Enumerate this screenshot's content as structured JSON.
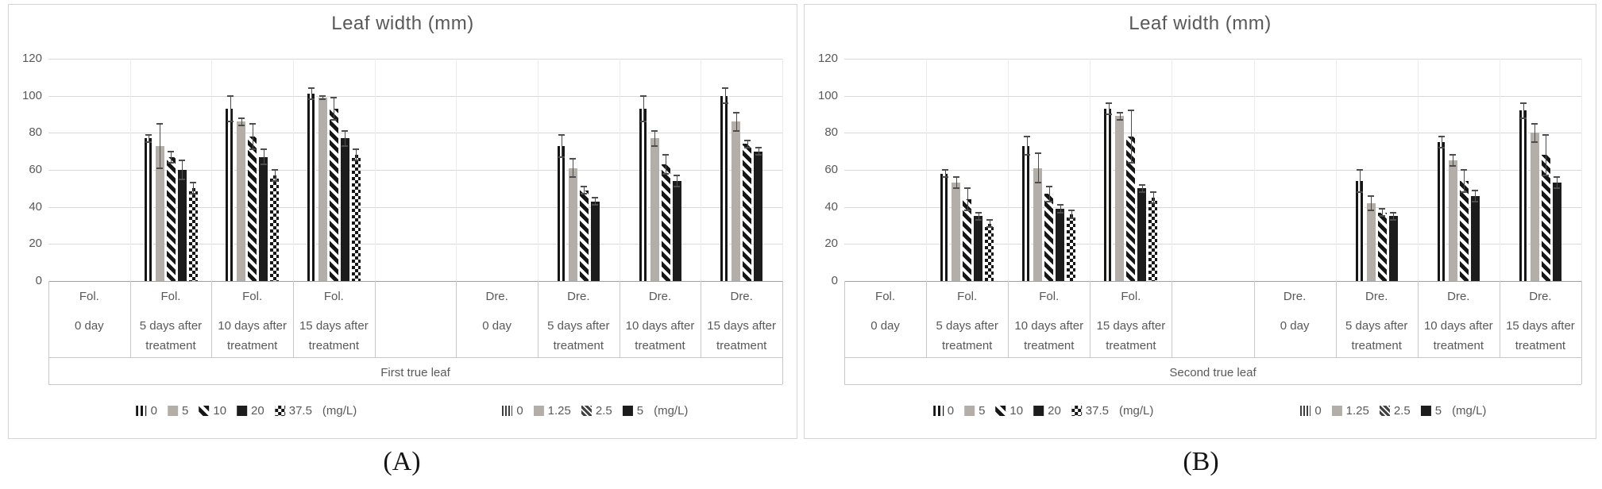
{
  "colors": {
    "text": "#595959",
    "gridline": "#d9d9d9",
    "bar_gray": "#b3afa8",
    "bar_black": "#1c1c1c",
    "error_bar": "#4d4d4d"
  },
  "figure": {
    "caption_a": "(A)",
    "caption_b": "(B)"
  },
  "chart_data": [
    {
      "type": "bar",
      "panel": "A",
      "title": "Leaf width (mm)",
      "caption": "(A)",
      "axis_caption": "First true leaf",
      "ylim": [
        0,
        120
      ],
      "yticks": [
        "0",
        "20",
        "40",
        "60",
        "80",
        "100",
        "120"
      ],
      "grid": true,
      "legend_position": "bottom",
      "groups": [
        {
          "label_top": "Fol.",
          "label_mid": "0 day",
          "label_bottom": "",
          "series": []
        },
        {
          "label_top": "Fol.",
          "label_mid": "5 days after",
          "label_bottom": "treatment",
          "series": [
            {
              "name": "0",
              "pattern": "vstripe",
              "value": 77,
              "error": 2
            },
            {
              "name": "5",
              "pattern": "gray",
              "value": 73,
              "error": 12
            },
            {
              "name": "10",
              "pattern": "diag",
              "value": 67,
              "error": 3
            },
            {
              "name": "20",
              "pattern": "black",
              "value": 60,
              "error": 5
            },
            {
              "name": "37.5",
              "pattern": "check",
              "value": 50,
              "error": 3
            }
          ]
        },
        {
          "label_top": "Fol.",
          "label_mid": "10 days after",
          "label_bottom": "treatment",
          "series": [
            {
              "name": "0",
              "pattern": "vstripe",
              "value": 93,
              "error": 7
            },
            {
              "name": "5",
              "pattern": "gray",
              "value": 86,
              "error": 2
            },
            {
              "name": "10",
              "pattern": "diag",
              "value": 78,
              "error": 7
            },
            {
              "name": "20",
              "pattern": "black",
              "value": 67,
              "error": 4
            },
            {
              "name": "37.5",
              "pattern": "check",
              "value": 57,
              "error": 3
            }
          ]
        },
        {
          "label_top": "Fol.",
          "label_mid": "15 days after",
          "label_bottom": "treatment",
          "series": [
            {
              "name": "0",
              "pattern": "vstripe",
              "value": 101,
              "error": 3
            },
            {
              "name": "5",
              "pattern": "gray",
              "value": 99,
              "error": 1
            },
            {
              "name": "10",
              "pattern": "diag",
              "value": 93,
              "error": 6
            },
            {
              "name": "20",
              "pattern": "black",
              "value": 77,
              "error": 4
            },
            {
              "name": "37.5",
              "pattern": "check",
              "value": 68,
              "error": 3
            }
          ]
        },
        {
          "label_top": "",
          "label_mid": "",
          "label_bottom": "",
          "series": []
        },
        {
          "label_top": "Dre.",
          "label_mid": "0 day",
          "label_bottom": "",
          "series": []
        },
        {
          "label_top": "Dre.",
          "label_mid": "5 days after",
          "label_bottom": "treatment",
          "series": [
            {
              "name": "0",
              "pattern": "vstripe",
              "value": 73,
              "error": 6
            },
            {
              "name": "1.25",
              "pattern": "gray",
              "value": 61,
              "error": 5
            },
            {
              "name": "2.5",
              "pattern": "diag",
              "value": 49,
              "error": 2
            },
            {
              "name": "5",
              "pattern": "black",
              "value": 43,
              "error": 2
            }
          ]
        },
        {
          "label_top": "Dre.",
          "label_mid": "10 days after",
          "label_bottom": "treatment",
          "series": [
            {
              "name": "0",
              "pattern": "vstripe",
              "value": 93,
              "error": 7
            },
            {
              "name": "1.25",
              "pattern": "gray",
              "value": 77,
              "error": 4
            },
            {
              "name": "2.5",
              "pattern": "diag",
              "value": 63,
              "error": 5
            },
            {
              "name": "5",
              "pattern": "black",
              "value": 54,
              "error": 3
            }
          ]
        },
        {
          "label_top": "Dre.",
          "label_mid": "15 days after",
          "label_bottom": "treatment",
          "series": [
            {
              "name": "0",
              "pattern": "vstripe",
              "value": 100,
              "error": 4
            },
            {
              "name": "1.25",
              "pattern": "gray",
              "value": 86,
              "error": 5
            },
            {
              "name": "2.5",
              "pattern": "diag",
              "value": 74,
              "error": 2
            },
            {
              "name": "5",
              "pattern": "black",
              "value": 70,
              "error": 2
            }
          ]
        }
      ],
      "legends": [
        {
          "entries": [
            {
              "swatch": "vstripe",
              "label": "0"
            },
            {
              "swatch": "gray",
              "label": "5"
            },
            {
              "swatch": "diag",
              "label": "10"
            },
            {
              "swatch": "black",
              "label": "20"
            },
            {
              "swatch": "check",
              "label": "37.5"
            }
          ],
          "suffix": "(mg/L)"
        },
        {
          "entries": [
            {
              "swatch": "vstripe-fine",
              "label": "0"
            },
            {
              "swatch": "gray",
              "label": "1.25"
            },
            {
              "swatch": "diag-fine",
              "label": "2.5"
            },
            {
              "swatch": "black",
              "label": "5"
            }
          ],
          "suffix": "(mg/L)"
        }
      ]
    },
    {
      "type": "bar",
      "panel": "B",
      "title": "Leaf width (mm)",
      "caption": "(B)",
      "axis_caption": "Second true leaf",
      "ylim": [
        0,
        120
      ],
      "yticks": [
        "0",
        "20",
        "40",
        "60",
        "80",
        "100",
        "120"
      ],
      "grid": true,
      "legend_position": "bottom",
      "groups": [
        {
          "label_top": "Fol.",
          "label_mid": "0 day",
          "label_bottom": "",
          "series": []
        },
        {
          "label_top": "Fol.",
          "label_mid": "5 days after",
          "label_bottom": "treatment",
          "series": [
            {
              "name": "0",
              "pattern": "vstripe",
              "value": 58,
              "error": 2
            },
            {
              "name": "5",
              "pattern": "gray",
              "value": 53,
              "error": 3
            },
            {
              "name": "10",
              "pattern": "diag",
              "value": 44,
              "error": 6
            },
            {
              "name": "20",
              "pattern": "black",
              "value": 35,
              "error": 2
            },
            {
              "name": "37.5",
              "pattern": "check",
              "value": 31,
              "error": 2
            }
          ]
        },
        {
          "label_top": "Fol.",
          "label_mid": "10 days after",
          "label_bottom": "treatment",
          "series": [
            {
              "name": "0",
              "pattern": "vstripe",
              "value": 73,
              "error": 5
            },
            {
              "name": "5",
              "pattern": "gray",
              "value": 61,
              "error": 8
            },
            {
              "name": "10",
              "pattern": "diag",
              "value": 47,
              "error": 4
            },
            {
              "name": "20",
              "pattern": "black",
              "value": 39,
              "error": 2
            },
            {
              "name": "37.5",
              "pattern": "check",
              "value": 36,
              "error": 2
            }
          ]
        },
        {
          "label_top": "Fol.",
          "label_mid": "15 days after",
          "label_bottom": "treatment",
          "series": [
            {
              "name": "0",
              "pattern": "vstripe",
              "value": 93,
              "error": 3
            },
            {
              "name": "5",
              "pattern": "gray",
              "value": 89,
              "error": 2
            },
            {
              "name": "10",
              "pattern": "diag",
              "value": 78,
              "error": 14
            },
            {
              "name": "20",
              "pattern": "black",
              "value": 50,
              "error": 2
            },
            {
              "name": "37.5",
              "pattern": "check",
              "value": 45,
              "error": 3
            }
          ]
        },
        {
          "label_top": "",
          "label_mid": "",
          "label_bottom": "",
          "series": []
        },
        {
          "label_top": "Dre.",
          "label_mid": "0 day",
          "label_bottom": "",
          "series": []
        },
        {
          "label_top": "Dre.",
          "label_mid": "5 days after",
          "label_bottom": "treatment",
          "series": [
            {
              "name": "0",
              "pattern": "vstripe",
              "value": 54,
              "error": 6
            },
            {
              "name": "1.25",
              "pattern": "gray",
              "value": 42,
              "error": 4
            },
            {
              "name": "2.5",
              "pattern": "diag",
              "value": 37,
              "error": 2
            },
            {
              "name": "5",
              "pattern": "black",
              "value": 35,
              "error": 2
            }
          ]
        },
        {
          "label_top": "Dre.",
          "label_mid": "10 days after",
          "label_bottom": "treatment",
          "series": [
            {
              "name": "0",
              "pattern": "vstripe",
              "value": 75,
              "error": 3
            },
            {
              "name": "1.25",
              "pattern": "gray",
              "value": 65,
              "error": 3
            },
            {
              "name": "2.5",
              "pattern": "diag",
              "value": 54,
              "error": 6
            },
            {
              "name": "5",
              "pattern": "black",
              "value": 46,
              "error": 3
            }
          ]
        },
        {
          "label_top": "Dre.",
          "label_mid": "15 days after",
          "label_bottom": "treatment",
          "series": [
            {
              "name": "0",
              "pattern": "vstripe",
              "value": 92,
              "error": 4
            },
            {
              "name": "1.25",
              "pattern": "gray",
              "value": 80,
              "error": 5
            },
            {
              "name": "2.5",
              "pattern": "diag",
              "value": 68,
              "error": 11
            },
            {
              "name": "5",
              "pattern": "black",
              "value": 53,
              "error": 3
            }
          ]
        }
      ],
      "legends": [
        {
          "entries": [
            {
              "swatch": "vstripe",
              "label": "0"
            },
            {
              "swatch": "gray",
              "label": "5"
            },
            {
              "swatch": "diag",
              "label": "10"
            },
            {
              "swatch": "black",
              "label": "20"
            },
            {
              "swatch": "check",
              "label": "37.5"
            }
          ],
          "suffix": "(mg/L)"
        },
        {
          "entries": [
            {
              "swatch": "vstripe-fine",
              "label": "0"
            },
            {
              "swatch": "gray",
              "label": "1.25"
            },
            {
              "swatch": "diag-fine",
              "label": "2.5"
            },
            {
              "swatch": "black",
              "label": "5"
            }
          ],
          "suffix": "(mg/L)"
        }
      ]
    }
  ]
}
